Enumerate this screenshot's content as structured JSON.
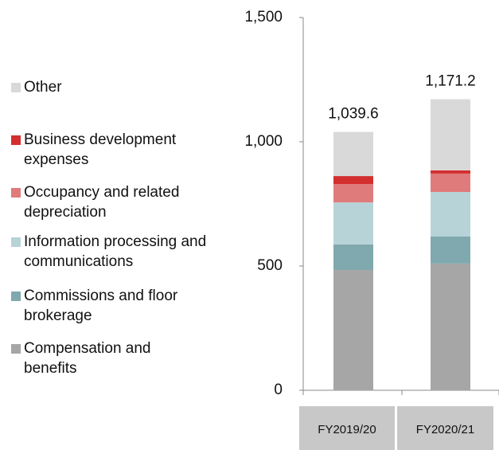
{
  "chart_data": {
    "type": "stacked_bar",
    "categories": [
      "FY2019/20",
      "FY2020/21"
    ],
    "series": [
      {
        "name": "Compensation and benefits",
        "color": "#a6a6a6",
        "values": [
          484,
          510
        ]
      },
      {
        "name": "Commissions and floor brokerage",
        "color": "#7fa9ae",
        "values": [
          103,
          109
        ]
      },
      {
        "name": "Information processing and communications",
        "color": "#b7d3d8",
        "values": [
          169,
          179
        ]
      },
      {
        "name": "Occupancy and related depreciation",
        "color": "#e07b7b",
        "values": [
          74,
          74
        ]
      },
      {
        "name": "Business development expenses",
        "color": "#d32f2f",
        "values": [
          32,
          13
        ]
      },
      {
        "name": "Other",
        "color": "#d9d9d9",
        "values": [
          177.6,
          286.2
        ]
      }
    ],
    "totals": [
      1039.6,
      1171.2
    ],
    "total_labels": [
      "1,039.6",
      "1,171.2"
    ],
    "ylim": [
      0,
      1500
    ],
    "yticks": [
      0,
      500,
      {
        "value": 1000,
        "label": "1,000"
      },
      {
        "value": 1500,
        "label": "1,500"
      }
    ],
    "grid": false
  }
}
